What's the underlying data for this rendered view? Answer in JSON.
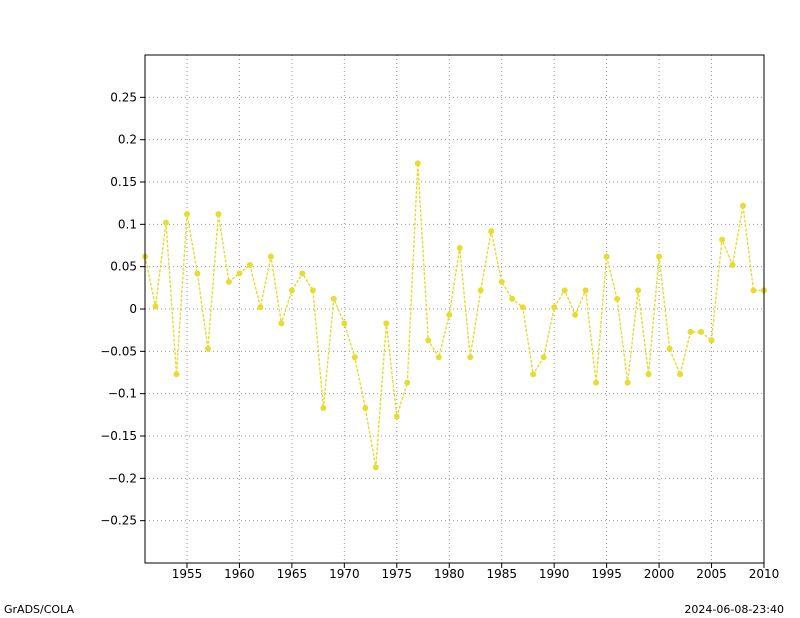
{
  "footer": {
    "left": "GrADS/COLA",
    "right": "2024-06-08-23:40"
  },
  "chart_data": {
    "type": "line",
    "title": "",
    "xlabel": "",
    "ylabel": "",
    "xlim": [
      1951,
      2010
    ],
    "ylim": [
      -0.3,
      0.3
    ],
    "grid": true,
    "x_ticks": [
      1955,
      1960,
      1965,
      1970,
      1975,
      1980,
      1985,
      1990,
      1995,
      2000,
      2005,
      2010
    ],
    "x_tick_labels": [
      "1955",
      "1960",
      "1965",
      "1970",
      "1975",
      "1980",
      "1985",
      "1990",
      "1995",
      "2000",
      "2005",
      "2010"
    ],
    "y_ticks": [
      0.25,
      0.2,
      0.15,
      0.1,
      0.05,
      0,
      -0.05,
      -0.1,
      -0.15,
      -0.2,
      -0.25
    ],
    "y_tick_labels": [
      "0.25",
      "0.2",
      "0.15",
      "0.1",
      "0.05",
      "0",
      "−0.05",
      "−0.1",
      "−0.15",
      "−0.2",
      "−0.25"
    ],
    "series_color": "#e6dc32",
    "series": [
      {
        "x": [
          1951,
          1952,
          1953,
          1954,
          1955,
          1956,
          1957,
          1958,
          1959,
          1960,
          1961,
          1962,
          1963,
          1964,
          1965,
          1966,
          1967,
          1968,
          1969,
          1970,
          1971,
          1972,
          1973,
          1974,
          1975,
          1976,
          1977,
          1978,
          1979,
          1980,
          1981,
          1982,
          1983,
          1984,
          1985,
          1986,
          1987,
          1988,
          1989,
          1990,
          1991,
          1992,
          1993,
          1994,
          1995,
          1996,
          1997,
          1998,
          1999,
          2000,
          2001,
          2002,
          2003,
          2004,
          2005,
          2006,
          2007,
          2008,
          2009,
          2010
        ],
        "values": [
          0.062,
          0.003,
          0.102,
          -0.077,
          0.112,
          0.042,
          -0.047,
          0.112,
          0.032,
          0.042,
          0.052,
          0.002,
          0.062,
          -0.017,
          0.022,
          0.042,
          0.022,
          -0.117,
          0.012,
          -0.017,
          -0.057,
          -0.117,
          -0.187,
          -0.017,
          -0.127,
          -0.087,
          0.172,
          -0.037,
          -0.057,
          -0.007,
          0.072,
          -0.057,
          0.022,
          0.092,
          0.032,
          0.012,
          0.002,
          -0.077,
          -0.057,
          0.002,
          0.022,
          -0.007,
          0.022,
          -0.087,
          0.062,
          0.012,
          -0.087,
          0.022,
          -0.077,
          0.062,
          -0.047,
          -0.077,
          -0.027,
          -0.027,
          -0.037,
          0.082,
          0.052,
          0.122,
          0.022,
          0.022
        ]
      }
    ]
  }
}
